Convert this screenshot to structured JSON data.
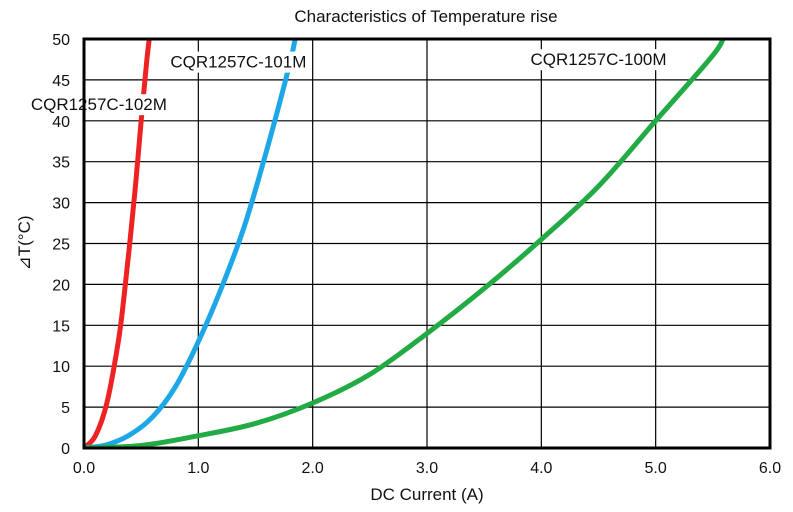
{
  "chart_data": {
    "type": "line",
    "title": "Characteristics of Temperature rise",
    "xlabel": "DC Current (A)",
    "ylabel": "⊿T(°C)",
    "xlim": [
      0,
      6
    ],
    "ylim": [
      0,
      50
    ],
    "x_ticks": [
      "0.0",
      "1.0",
      "2.0",
      "3.0",
      "4.0",
      "5.0",
      "6.0"
    ],
    "y_ticks": [
      "0",
      "5",
      "10",
      "15",
      "20",
      "25",
      "30",
      "35",
      "40",
      "45",
      "50"
    ],
    "grid": true,
    "series": [
      {
        "name": "CQR1257C-102M",
        "color": "#ee2222",
        "x": [
          0.0,
          0.1,
          0.2,
          0.3,
          0.35,
          0.4,
          0.45,
          0.5,
          0.55,
          0.58
        ],
        "y": [
          0.0,
          1.5,
          5.5,
          13.0,
          18.5,
          25.0,
          32.0,
          40.0,
          47.5,
          51.0
        ]
      },
      {
        "name": "CQR1257C-101M",
        "color": "#1ea7e6",
        "x": [
          0.0,
          0.2,
          0.4,
          0.6,
          0.8,
          1.0,
          1.2,
          1.4,
          1.6,
          1.8,
          1.86
        ],
        "y": [
          0.0,
          0.4,
          1.6,
          3.8,
          7.5,
          13.0,
          19.5,
          27.0,
          36.5,
          47.0,
          51.0
        ]
      },
      {
        "name": "CQR1257C-100M",
        "color": "#22aa44",
        "x": [
          0.0,
          0.5,
          1.0,
          1.5,
          2.0,
          2.5,
          3.0,
          3.5,
          4.0,
          4.5,
          5.0,
          5.5,
          5.6
        ],
        "y": [
          0.0,
          0.3,
          1.5,
          3.0,
          5.5,
          9.0,
          14.0,
          19.5,
          25.5,
          32.0,
          40.0,
          48.0,
          50.5
        ]
      }
    ]
  }
}
